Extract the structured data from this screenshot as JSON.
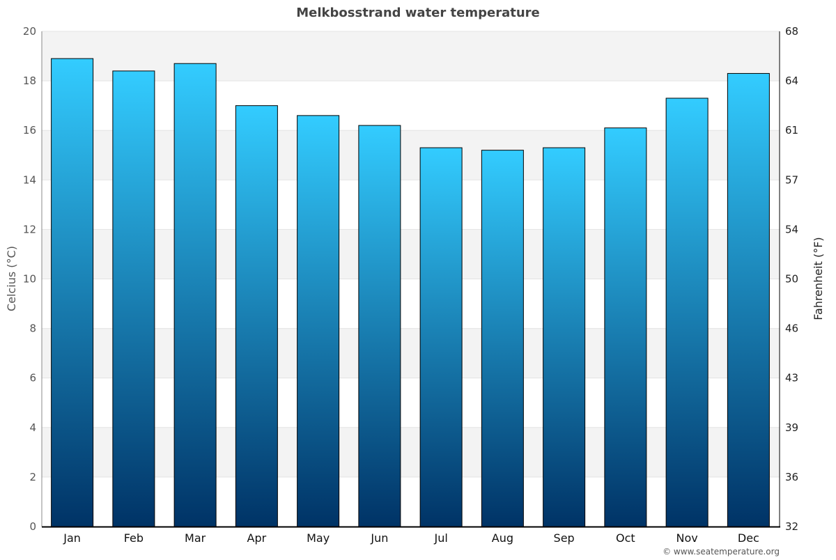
{
  "chart_data": {
    "type": "bar",
    "title": "Melkbosstrand water temperature",
    "categories": [
      "Jan",
      "Feb",
      "Mar",
      "Apr",
      "May",
      "Jun",
      "Jul",
      "Aug",
      "Sep",
      "Oct",
      "Nov",
      "Dec"
    ],
    "values": [
      18.9,
      18.4,
      18.7,
      17.0,
      16.6,
      16.2,
      15.3,
      15.2,
      15.3,
      16.1,
      17.3,
      18.3
    ],
    "ylabel": "Celcius (°C)",
    "ylabel_right": "Fahrenheit (°F)",
    "ylim": [
      0,
      20
    ],
    "yticks": [
      "0",
      "2",
      "4",
      "6",
      "8",
      "10",
      "12",
      "14",
      "16",
      "18",
      "20"
    ],
    "yticks_right": [
      "32",
      "36",
      "39",
      "43",
      "46",
      "50",
      "54",
      "57",
      "61",
      "64",
      "68"
    ],
    "grid": true,
    "colors": {
      "bar_top": "#33ccff",
      "bar_bottom": "#003366",
      "band": "#f3f3f3"
    }
  },
  "credit": "© www.seatemperature.org"
}
